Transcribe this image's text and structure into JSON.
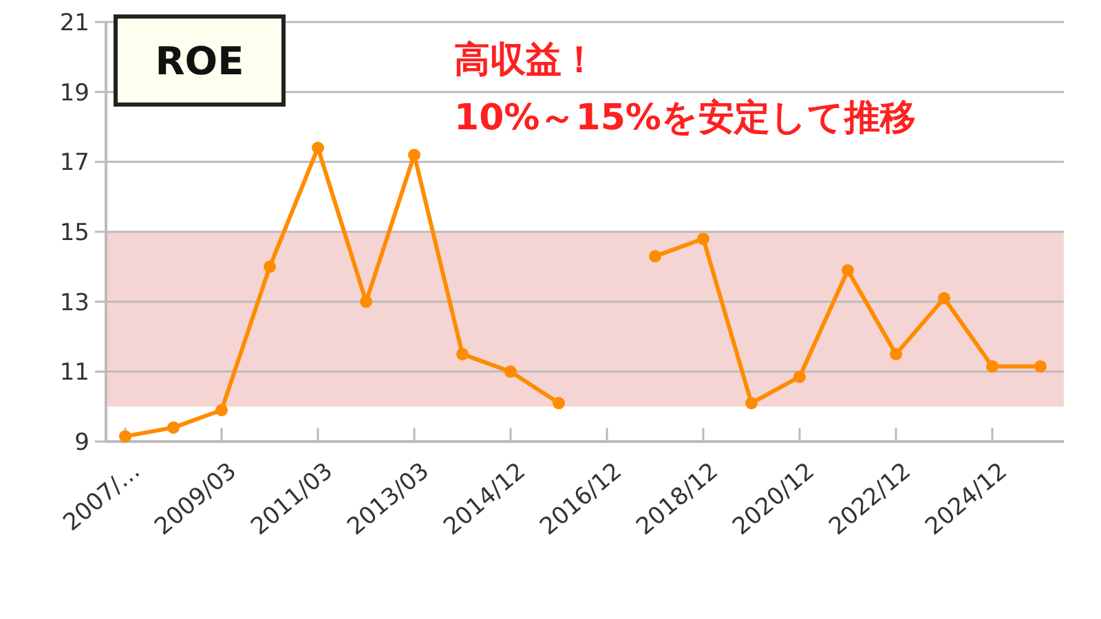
{
  "chart_data": {
    "type": "line",
    "title": "ROE",
    "annotations": [
      "高収益！",
      "10%～15%を安定して推移"
    ],
    "categories": [
      "2007/…",
      null,
      "2009/03",
      null,
      "2011/03",
      null,
      "2013/03",
      null,
      "2014/12",
      null,
      "2016/12",
      null,
      "2018/12",
      null,
      "2020/12",
      null,
      "2022/12",
      null,
      "2024/12",
      null
    ],
    "series": [
      {
        "color": "#ff8c00",
        "values": [
          9.15,
          9.4,
          9.9,
          14.0,
          17.4,
          13.0,
          17.2,
          11.5,
          11.0,
          10.1,
          null,
          14.3,
          14.8,
          10.1,
          10.85,
          13.9,
          11.5,
          13.1,
          11.15,
          11.15
        ]
      }
    ],
    "ylim": [
      9,
      21
    ],
    "yticks": [
      9,
      11,
      13,
      15,
      17,
      19,
      21
    ],
    "bands": [
      {
        "axis": "y",
        "from": 10,
        "to": 15,
        "color": "#f5d5d3"
      }
    ],
    "grid": "y",
    "marker": "circle",
    "line_style": "solid"
  }
}
